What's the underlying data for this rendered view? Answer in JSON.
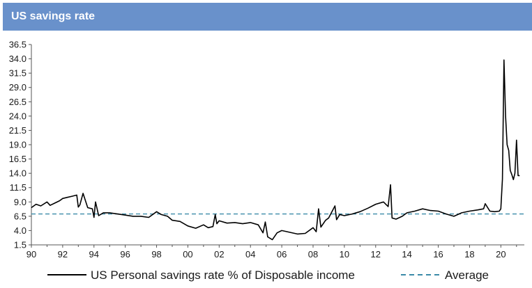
{
  "header": {
    "title": "US savings rate"
  },
  "colors": {
    "header_bg": "#6991cb",
    "series_line": "#000000",
    "average_line": "#3a8aa8"
  },
  "chart_data": {
    "type": "line",
    "title": "US savings rate",
    "xlabel": "",
    "ylabel": "",
    "ylim": [
      1.5,
      36.5
    ],
    "xlim": [
      1990,
      2021.5
    ],
    "y_ticks": [
      "36.5",
      "34.0",
      "31.5",
      "29.0",
      "26.5",
      "24.0",
      "21.5",
      "19.0",
      "16.5",
      "14.0",
      "11.5",
      "9.0",
      "6.5",
      "4.0",
      "1.5"
    ],
    "x_ticks": [
      "90",
      "92",
      "94",
      "96",
      "98",
      "00",
      "02",
      "04",
      "06",
      "08",
      "10",
      "12",
      "14",
      "16",
      "18",
      "20"
    ],
    "legend": {
      "position": "bottom",
      "entries": [
        "US Personal savings rate % of Disposable income",
        "Average"
      ]
    },
    "grid": false,
    "average": 6.9,
    "series": [
      {
        "name": "US Personal savings rate % of Disposable income",
        "x": [
          1990.0,
          1990.3,
          1990.6,
          1991.0,
          1991.2,
          1991.5,
          1991.8,
          1992.0,
          1992.3,
          1992.6,
          1992.9,
          1993.0,
          1993.1,
          1993.3,
          1993.6,
          1993.9,
          1994.0,
          1994.1,
          1994.3,
          1994.6,
          1995.0,
          1995.5,
          1996.0,
          1996.5,
          1997.0,
          1997.5,
          1998.0,
          1998.3,
          1998.7,
          1999.0,
          1999.5,
          2000.0,
          2000.5,
          2001.0,
          2001.3,
          2001.6,
          2001.75,
          2001.85,
          2002.0,
          2002.5,
          2003.0,
          2003.5,
          2004.0,
          2004.5,
          2004.8,
          2004.95,
          2005.1,
          2005.4,
          2005.7,
          2006.0,
          2006.5,
          2007.0,
          2007.5,
          2008.0,
          2008.2,
          2008.35,
          2008.5,
          2008.8,
          2009.0,
          2009.4,
          2009.5,
          2009.7,
          2010.0,
          2010.5,
          2011.0,
          2011.5,
          2012.0,
          2012.5,
          2012.8,
          2012.95,
          2013.05,
          2013.3,
          2013.7,
          2014.0,
          2014.5,
          2015.0,
          2015.5,
          2016.0,
          2016.5,
          2017.0,
          2017.5,
          2018.0,
          2018.5,
          2018.9,
          2019.0,
          2019.3,
          2019.6,
          2019.9,
          2020.0,
          2020.1,
          2020.2,
          2020.3,
          2020.4,
          2020.5,
          2020.6,
          2020.7,
          2020.8,
          2020.9,
          2021.0,
          2021.1,
          2021.2
        ],
        "values": [
          8.0,
          8.6,
          8.3,
          9.0,
          8.4,
          8.8,
          9.2,
          9.6,
          9.8,
          10.0,
          10.2,
          8.1,
          8.5,
          10.5,
          8.0,
          7.8,
          6.3,
          9.0,
          6.6,
          7.1,
          7.1,
          6.9,
          6.7,
          6.5,
          6.5,
          6.3,
          7.3,
          6.8,
          6.5,
          5.8,
          5.6,
          4.8,
          4.4,
          5.0,
          4.5,
          4.7,
          6.8,
          5.2,
          5.7,
          5.3,
          5.4,
          5.2,
          5.4,
          5.0,
          3.6,
          5.5,
          2.9,
          2.4,
          3.6,
          4.0,
          3.7,
          3.4,
          3.5,
          4.5,
          3.8,
          7.8,
          4.6,
          5.8,
          6.2,
          8.3,
          5.9,
          6.8,
          6.6,
          6.9,
          7.3,
          7.9,
          8.6,
          9.0,
          8.2,
          12.0,
          6.2,
          6.0,
          6.5,
          7.1,
          7.4,
          7.8,
          7.5,
          7.4,
          6.9,
          6.5,
          7.1,
          7.4,
          7.6,
          7.8,
          8.7,
          7.4,
          7.3,
          7.4,
          7.8,
          13.0,
          33.8,
          24.0,
          19.0,
          18.0,
          14.5,
          13.8,
          12.9,
          14.0,
          19.8,
          13.6,
          13.6
        ]
      }
    ]
  }
}
